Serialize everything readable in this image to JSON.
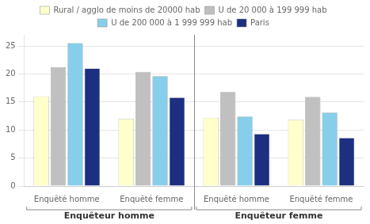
{
  "chart_data": {
    "type": "bar",
    "categories": [
      "Enquêté homme",
      "Enquêté femme",
      "Enquêté homme",
      "Enquêté femme"
    ],
    "series": [
      {
        "name": "Rural / agglo de moins de 20000 hab",
        "color": "#ffffcc",
        "values": [
          16.0,
          12.0,
          12.2,
          11.8
        ]
      },
      {
        "name": "U de 20 000 à 199 999 hab",
        "color": "#c0c0c0",
        "values": [
          21.2,
          20.4,
          16.8,
          15.9
        ]
      },
      {
        "name": "U de 200 000 à 1 999 999 hab",
        "color": "#87ceeb",
        "values": [
          25.5,
          19.6,
          12.4,
          13.1
        ]
      },
      {
        "name": "Paris",
        "color": "#1c2f80",
        "values": [
          21.0,
          15.8,
          9.3,
          8.6
        ]
      }
    ],
    "annotations": [
      {
        "text": "Enquêteur homme",
        "span": [
          0,
          1
        ]
      },
      {
        "text": "Enquêteur femme",
        "span": [
          2,
          3
        ]
      }
    ],
    "ylim": [
      0,
      27
    ],
    "yticks": [
      0,
      5,
      10,
      15,
      20,
      25
    ],
    "grid": true,
    "legend": "top"
  }
}
